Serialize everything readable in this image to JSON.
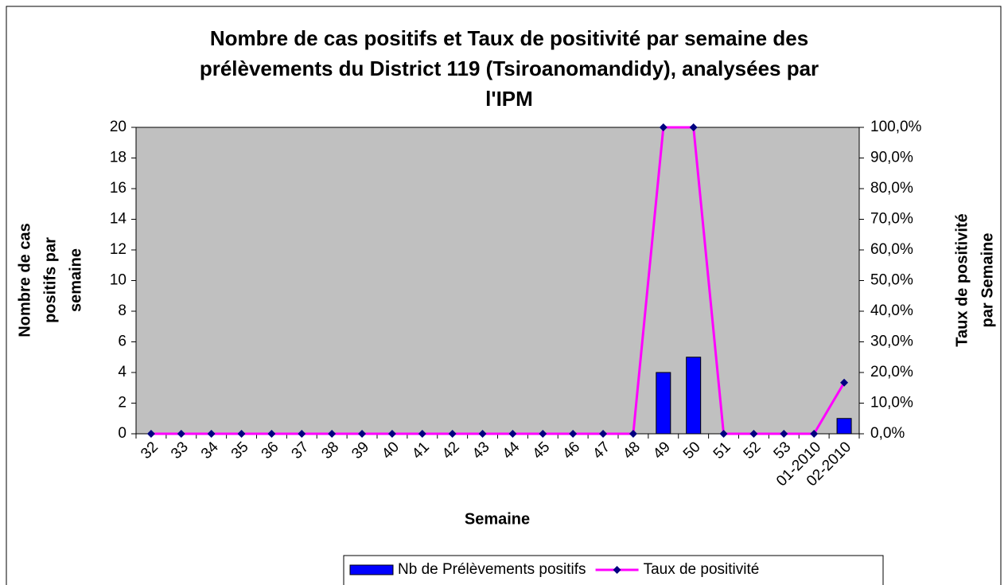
{
  "chart_data": {
    "type": "bar_line",
    "title": [
      "Nombre de cas positifs et Taux de positivité par semaine des",
      "prélèvements du District 119 (Tsiroanomandidy), analysées par",
      "l'IPM"
    ],
    "ylabel": [
      "Nombre de cas",
      "positifs par",
      "semaine"
    ],
    "y2label": [
      "Taux de positivité",
      "par Semaine"
    ],
    "xlabel": "Semaine",
    "categories": [
      "32",
      "33",
      "34",
      "35",
      "36",
      "37",
      "38",
      "39",
      "40",
      "41",
      "42",
      "43",
      "44",
      "45",
      "46",
      "47",
      "48",
      "49",
      "50",
      "51",
      "52",
      "53",
      "01-2010",
      "02-2010"
    ],
    "series": [
      {
        "name": "Nb de Prélèvements positifs",
        "type": "bar",
        "color": "#0000ff",
        "values": [
          0,
          0,
          0,
          0,
          0,
          0,
          0,
          0,
          0,
          0,
          0,
          0,
          0,
          0,
          0,
          0,
          0,
          4,
          5,
          0,
          0,
          0,
          0,
          1
        ]
      },
      {
        "name": "Taux de positivité",
        "type": "line",
        "axis": "y2",
        "color": "#ff00ff",
        "marker_color": "#000080",
        "values": [
          0,
          0,
          0,
          0,
          0,
          0,
          0,
          0,
          0,
          0,
          0,
          0,
          0,
          0,
          0,
          0,
          0,
          100,
          100,
          0,
          0,
          0,
          0,
          16.7
        ]
      }
    ],
    "ylim": [
      0,
      20
    ],
    "yticks": [
      0,
      2,
      4,
      6,
      8,
      10,
      12,
      14,
      16,
      18,
      20
    ],
    "y2lim": [
      0,
      100
    ],
    "y2ticks": [
      {
        "value": 0,
        "label": "0,0%"
      },
      {
        "value": 10,
        "label": "10,0%"
      },
      {
        "value": 20,
        "label": "20,0%"
      },
      {
        "value": 30,
        "label": "30,0%"
      },
      {
        "value": 40,
        "label": "40,0%"
      },
      {
        "value": 50,
        "label": "50,0%"
      },
      {
        "value": 60,
        "label": "60,0%"
      },
      {
        "value": 70,
        "label": "70,0%"
      },
      {
        "value": 80,
        "label": "80,0%"
      },
      {
        "value": 90,
        "label": "90,0%"
      },
      {
        "value": 100,
        "label": "100,0%"
      }
    ],
    "plot_background": "#c0c0c0",
    "legend": "bottom"
  }
}
